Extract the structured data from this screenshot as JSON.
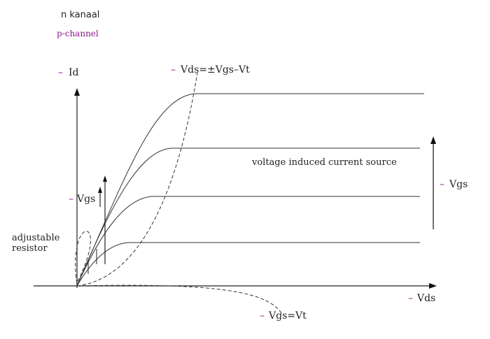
{
  "legend": {
    "n_label": "n kanaal",
    "p_label": "p-channel",
    "p_color": "#8B1A8B"
  },
  "prefix": {
    "symbol": "–",
    "color": "#8B1A8B"
  },
  "labels": {
    "id_axis": "Id",
    "vds_axis": "Vds",
    "saturation_boundary": "Vds=±Vgs–Vt",
    "vgs_left": "Vgs",
    "vgs_right": "Vgs",
    "current_source": "voltage induced current source",
    "resistor_line1": "adjustable",
    "resistor_line2": "resistor",
    "threshold": "Vgs=Vt"
  },
  "colors": {
    "ink": "#222222",
    "accent": "#8B1A8B"
  },
  "arrow_icons": [
    "up-arrow-icon",
    "up-arrow-icon"
  ]
}
